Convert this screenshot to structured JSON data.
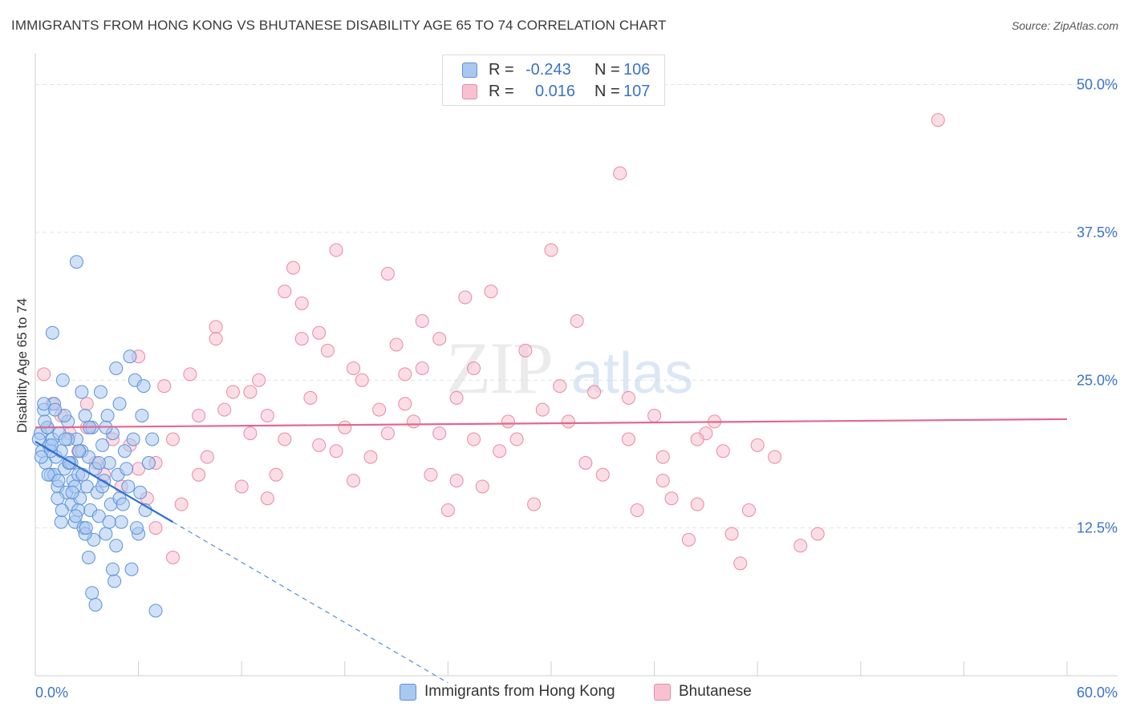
{
  "title": "IMMIGRANTS FROM HONG KONG VS BHUTANESE DISABILITY AGE 65 TO 74 CORRELATION CHART",
  "source": "Source: ZipAtlas.com",
  "watermark": {
    "zip": "ZIP",
    "atlas": "atlas"
  },
  "legend": {
    "series1": {
      "r_label": "R =",
      "r_value": "-0.243",
      "n_label": "N =",
      "n_value": "106"
    },
    "series2": {
      "r_label": "R =",
      "r_value": "0.016",
      "n_label": "N =",
      "n_value": "107"
    }
  },
  "bottom_legend": {
    "series1": "Immigrants from Hong Kong",
    "series2": "Bhutanese"
  },
  "colors": {
    "blue_fill": "#a9c8f0",
    "blue_stroke": "#5d92d9",
    "blue_line": "#2e6fd1",
    "pink_fill": "#f7c1d0",
    "pink_stroke": "#e98aa6",
    "pink_line": "#e36790",
    "axis_text": "#3b73c8"
  },
  "chart_data": {
    "type": "scatter",
    "title": "IMMIGRANTS FROM HONG KONG VS BHUTANESE DISABILITY AGE 65 TO 74 CORRELATION CHART",
    "xlabel": "",
    "ylabel": "Disability Age 65 to 74",
    "xlim": [
      0,
      60
    ],
    "ylim": [
      0,
      52
    ],
    "x_tick_labels": [
      "0.0%",
      "60.0%"
    ],
    "y_ticks": [
      12.5,
      25.0,
      37.5,
      50.0
    ],
    "y_tick_labels": [
      "12.5%",
      "25.0%",
      "37.5%",
      "50.0%"
    ],
    "series": [
      {
        "name": "Immigrants from Hong Kong",
        "r": -0.243,
        "n": 106,
        "trend": {
          "x_start": 0.0,
          "y_start": 19.8,
          "x_end": 8.0,
          "y_end": 13.0,
          "dash_x_end": 24.0
        },
        "points": [
          [
            0.3,
            20.5
          ],
          [
            0.4,
            19.0
          ],
          [
            0.5,
            22.5
          ],
          [
            0.6,
            18.0
          ],
          [
            0.7,
            21.0
          ],
          [
            0.8,
            19.5
          ],
          [
            0.9,
            17.0
          ],
          [
            1.0,
            20.0
          ],
          [
            1.1,
            23.0
          ],
          [
            1.2,
            18.5
          ],
          [
            1.3,
            16.0
          ],
          [
            1.4,
            20.5
          ],
          [
            1.5,
            19.0
          ],
          [
            1.6,
            25.0
          ],
          [
            1.7,
            17.5
          ],
          [
            1.8,
            15.5
          ],
          [
            1.9,
            21.5
          ],
          [
            2.0,
            18.0
          ],
          [
            2.1,
            14.5
          ],
          [
            2.2,
            16.5
          ],
          [
            2.3,
            13.0
          ],
          [
            2.4,
            20.0
          ],
          [
            2.5,
            17.0
          ],
          [
            2.6,
            15.0
          ],
          [
            2.7,
            19.0
          ],
          [
            2.8,
            12.5
          ],
          [
            2.9,
            22.0
          ],
          [
            3.0,
            16.0
          ],
          [
            3.1,
            18.5
          ],
          [
            3.2,
            14.0
          ],
          [
            3.3,
            21.0
          ],
          [
            3.4,
            11.5
          ],
          [
            3.5,
            17.5
          ],
          [
            3.6,
            15.5
          ],
          [
            3.7,
            13.5
          ],
          [
            3.8,
            24.0
          ],
          [
            3.9,
            19.5
          ],
          [
            4.0,
            16.5
          ],
          [
            4.1,
            12.0
          ],
          [
            4.2,
            22.0
          ],
          [
            4.3,
            18.0
          ],
          [
            4.4,
            14.5
          ],
          [
            4.5,
            20.5
          ],
          [
            4.6,
            8.0
          ],
          [
            4.7,
            26.0
          ],
          [
            4.8,
            17.0
          ],
          [
            4.9,
            15.0
          ],
          [
            5.0,
            13.0
          ],
          [
            5.2,
            19.0
          ],
          [
            5.4,
            16.0
          ],
          [
            5.6,
            9.0
          ],
          [
            5.8,
            25.0
          ],
          [
            6.0,
            12.0
          ],
          [
            6.2,
            22.0
          ],
          [
            6.4,
            14.0
          ],
          [
            6.6,
            18.0
          ],
          [
            6.8,
            20.0
          ],
          [
            7.0,
            5.5
          ],
          [
            1.0,
            29.0
          ],
          [
            2.4,
            35.0
          ],
          [
            0.5,
            23.0
          ],
          [
            0.7,
            21.0
          ],
          [
            0.9,
            19.0
          ],
          [
            1.1,
            17.0
          ],
          [
            1.3,
            15.0
          ],
          [
            1.5,
            13.0
          ],
          [
            1.7,
            22.0
          ],
          [
            1.9,
            20.0
          ],
          [
            2.1,
            18.0
          ],
          [
            2.3,
            16.0
          ],
          [
            2.5,
            14.0
          ],
          [
            2.7,
            24.0
          ],
          [
            2.9,
            12.0
          ],
          [
            3.1,
            10.0
          ],
          [
            3.3,
            7.0
          ],
          [
            3.5,
            6.0
          ],
          [
            3.7,
            18.0
          ],
          [
            3.9,
            16.0
          ],
          [
            4.1,
            21.0
          ],
          [
            4.3,
            13.0
          ],
          [
            4.5,
            9.0
          ],
          [
            4.7,
            11.0
          ],
          [
            4.9,
            23.0
          ],
          [
            5.1,
            14.5
          ],
          [
            5.3,
            17.5
          ],
          [
            5.5,
            27.0
          ],
          [
            5.7,
            20.0
          ],
          [
            5.9,
            12.5
          ],
          [
            6.1,
            15.5
          ],
          [
            6.3,
            24.5
          ],
          [
            0.2,
            20.0
          ],
          [
            0.35,
            18.5
          ],
          [
            0.55,
            21.5
          ],
          [
            0.75,
            17.0
          ],
          [
            0.95,
            19.5
          ],
          [
            1.15,
            22.5
          ],
          [
            1.35,
            16.5
          ],
          [
            1.55,
            14.0
          ],
          [
            1.75,
            20.0
          ],
          [
            1.95,
            18.0
          ],
          [
            2.15,
            15.5
          ],
          [
            2.35,
            13.5
          ],
          [
            2.55,
            19.0
          ],
          [
            2.75,
            17.0
          ],
          [
            2.95,
            12.5
          ],
          [
            3.15,
            21.0
          ]
        ]
      },
      {
        "name": "Bhutanese",
        "r": 0.016,
        "n": 107,
        "trend": {
          "x_start": 0.0,
          "y_start": 21.0,
          "x_end": 60.0,
          "y_end": 21.7
        },
        "points": [
          [
            0.5,
            25.5
          ],
          [
            1.0,
            23.0
          ],
          [
            1.5,
            22.0
          ],
          [
            2.0,
            20.5
          ],
          [
            2.5,
            19.0
          ],
          [
            3.0,
            21.0
          ],
          [
            3.5,
            18.0
          ],
          [
            4.0,
            17.0
          ],
          [
            4.5,
            20.0
          ],
          [
            5.0,
            16.0
          ],
          [
            5.5,
            19.5
          ],
          [
            6.0,
            17.5
          ],
          [
            6.5,
            15.0
          ],
          [
            7.0,
            18.0
          ],
          [
            7.5,
            24.5
          ],
          [
            8.0,
            20.0
          ],
          [
            8.5,
            14.5
          ],
          [
            9.0,
            25.5
          ],
          [
            9.5,
            22.0
          ],
          [
            10.0,
            18.5
          ],
          [
            10.5,
            29.5
          ],
          [
            11.0,
            22.5
          ],
          [
            11.5,
            24.0
          ],
          [
            12.0,
            16.0
          ],
          [
            12.5,
            20.5
          ],
          [
            13.0,
            25.0
          ],
          [
            13.5,
            22.0
          ],
          [
            14.0,
            17.0
          ],
          [
            14.5,
            32.5
          ],
          [
            15.0,
            34.5
          ],
          [
            15.5,
            28.5
          ],
          [
            16.0,
            23.5
          ],
          [
            16.5,
            19.5
          ],
          [
            17.0,
            27.5
          ],
          [
            17.5,
            36.0
          ],
          [
            18.0,
            21.0
          ],
          [
            18.5,
            16.5
          ],
          [
            19.0,
            25.0
          ],
          [
            19.5,
            18.5
          ],
          [
            20.0,
            22.5
          ],
          [
            20.5,
            34.0
          ],
          [
            21.0,
            28.0
          ],
          [
            21.5,
            25.5
          ],
          [
            22.0,
            21.5
          ],
          [
            22.5,
            26.0
          ],
          [
            23.0,
            17.0
          ],
          [
            23.5,
            20.5
          ],
          [
            24.0,
            14.0
          ],
          [
            24.5,
            23.5
          ],
          [
            25.0,
            32.0
          ],
          [
            25.5,
            20.0
          ],
          [
            26.0,
            16.0
          ],
          [
            26.5,
            32.5
          ],
          [
            27.0,
            19.0
          ],
          [
            27.5,
            21.5
          ],
          [
            28.0,
            20.0
          ],
          [
            29.0,
            14.5
          ],
          [
            29.5,
            22.5
          ],
          [
            30.0,
            36.0
          ],
          [
            30.5,
            24.5
          ],
          [
            31.0,
            21.5
          ],
          [
            32.0,
            18.0
          ],
          [
            33.0,
            17.0
          ],
          [
            34.0,
            42.5
          ],
          [
            34.5,
            20.0
          ],
          [
            35.0,
            14.0
          ],
          [
            36.0,
            22.0
          ],
          [
            36.5,
            18.5
          ],
          [
            37.0,
            15.0
          ],
          [
            38.0,
            11.5
          ],
          [
            38.5,
            14.5
          ],
          [
            39.0,
            20.5
          ],
          [
            39.5,
            21.5
          ],
          [
            40.0,
            19.0
          ],
          [
            40.5,
            12.0
          ],
          [
            41.0,
            9.5
          ],
          [
            41.5,
            14.0
          ],
          [
            42.0,
            19.5
          ],
          [
            43.0,
            18.5
          ],
          [
            44.5,
            11.0
          ],
          [
            45.5,
            12.0
          ],
          [
            52.5,
            47.0
          ],
          [
            3.0,
            23.0
          ],
          [
            6.0,
            27.0
          ],
          [
            7.0,
            12.5
          ],
          [
            8.0,
            10.0
          ],
          [
            9.5,
            17.0
          ],
          [
            10.5,
            28.5
          ],
          [
            12.5,
            24.0
          ],
          [
            13.5,
            15.0
          ],
          [
            14.5,
            20.0
          ],
          [
            15.5,
            31.5
          ],
          [
            16.5,
            29.0
          ],
          [
            17.5,
            19.0
          ],
          [
            18.5,
            26.0
          ],
          [
            20.5,
            20.5
          ],
          [
            21.5,
            23.0
          ],
          [
            22.5,
            30.0
          ],
          [
            23.5,
            28.5
          ],
          [
            24.5,
            16.5
          ],
          [
            25.5,
            26.0
          ],
          [
            28.5,
            27.5
          ],
          [
            31.5,
            30.0
          ],
          [
            32.5,
            24.0
          ],
          [
            34.5,
            23.5
          ],
          [
            36.5,
            16.5
          ],
          [
            38.5,
            20.0
          ]
        ]
      }
    ]
  }
}
